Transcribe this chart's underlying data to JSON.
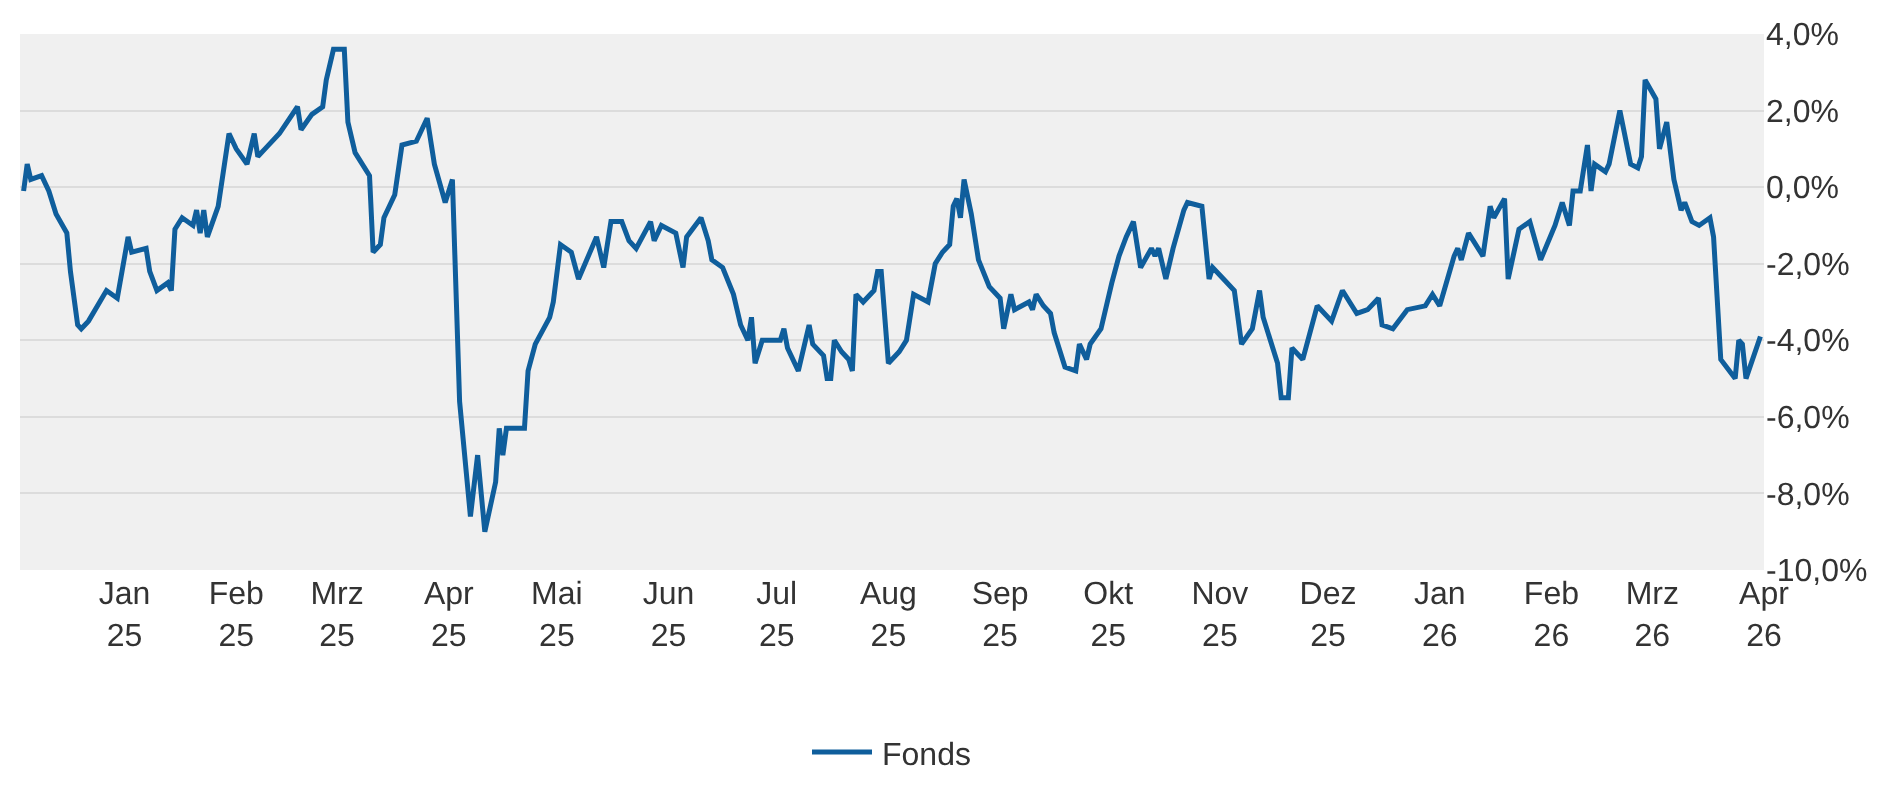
{
  "chart_data": {
    "type": "line",
    "x": [
      "2024-12-04",
      "2024-12-05",
      "2024-12-06",
      "2024-12-09",
      "2024-12-11",
      "2024-12-13",
      "2024-12-16",
      "2024-12-17",
      "2024-12-19",
      "2024-12-20",
      "2024-12-22",
      "2024-12-27",
      "2024-12-30",
      "2025-01-02",
      "2025-01-03",
      "2025-01-07",
      "2025-01-08",
      "2025-01-10",
      "2025-01-13",
      "2025-01-14",
      "2025-01-15",
      "2025-01-17",
      "2025-01-20",
      "2025-01-21",
      "2025-01-22",
      "2025-01-23",
      "2025-01-24",
      "2025-01-27",
      "2025-01-30",
      "2025-02-01",
      "2025-02-04",
      "2025-02-06",
      "2025-02-07",
      "2025-02-09",
      "2025-02-13",
      "2025-02-18",
      "2025-02-19",
      "2025-02-22",
      "2025-02-25",
      "2025-02-26",
      "2025-02-28",
      "2025-03-03",
      "2025-03-04",
      "2025-03-06",
      "2025-03-10",
      "2025-03-11",
      "2025-03-13",
      "2025-03-14",
      "2025-03-17",
      "2025-03-19",
      "2025-03-23",
      "2025-03-26",
      "2025-03-28",
      "2025-03-31",
      "2025-04-02",
      "2025-04-04",
      "2025-04-07",
      "2025-04-09",
      "2025-04-11",
      "2025-04-14",
      "2025-04-15",
      "2025-04-16",
      "2025-04-17",
      "2025-04-22",
      "2025-04-23",
      "2025-04-25",
      "2025-04-29",
      "2025-04-30",
      "2025-05-02",
      "2025-05-05",
      "2025-05-07",
      "2025-05-12",
      "2025-05-14",
      "2025-05-16",
      "2025-05-19",
      "2025-05-21",
      "2025-05-23",
      "2025-05-27",
      "2025-05-28",
      "2025-05-30",
      "2025-06-03",
      "2025-06-05",
      "2025-06-06",
      "2025-06-10",
      "2025-06-12",
      "2025-06-13",
      "2025-06-16",
      "2025-06-19",
      "2025-06-21",
      "2025-06-23",
      "2025-06-24",
      "2025-06-25",
      "2025-06-27",
      "2025-07-02",
      "2025-07-03",
      "2025-07-04",
      "2025-07-07",
      "2025-07-10",
      "2025-07-11",
      "2025-07-14",
      "2025-07-15",
      "2025-07-16",
      "2025-07-17",
      "2025-07-19",
      "2025-07-21",
      "2025-07-22",
      "2025-07-23",
      "2025-07-25",
      "2025-07-28",
      "2025-07-29",
      "2025-07-30",
      "2025-08-01",
      "2025-08-04",
      "2025-08-06",
      "2025-08-08",
      "2025-08-12",
      "2025-08-14",
      "2025-08-16",
      "2025-08-18",
      "2025-08-19",
      "2025-08-20",
      "2025-08-21",
      "2025-08-22",
      "2025-08-24",
      "2025-08-26",
      "2025-08-29",
      "2025-09-01",
      "2025-09-02",
      "2025-09-04",
      "2025-09-05",
      "2025-09-09",
      "2025-09-10",
      "2025-09-11",
      "2025-09-13",
      "2025-09-15",
      "2025-09-16",
      "2025-09-19",
      "2025-09-22",
      "2025-09-23",
      "2025-09-25",
      "2025-09-26",
      "2025-09-29",
      "2025-10-02",
      "2025-10-04",
      "2025-10-06",
      "2025-10-08",
      "2025-10-10",
      "2025-10-13",
      "2025-10-14",
      "2025-10-15",
      "2025-10-17",
      "2025-10-19",
      "2025-10-22",
      "2025-10-23",
      "2025-10-27",
      "2025-10-29",
      "2025-10-30",
      "2025-11-02",
      "2025-11-05",
      "2025-11-07",
      "2025-11-10",
      "2025-11-12",
      "2025-11-13",
      "2025-11-17",
      "2025-11-18",
      "2025-11-20",
      "2025-11-21",
      "2025-11-24",
      "2025-11-28",
      "2025-12-02",
      "2025-12-05",
      "2025-12-09",
      "2025-12-12",
      "2025-12-15",
      "2025-12-16",
      "2025-12-19",
      "2025-12-23",
      "2025-12-28",
      "2025-12-30",
      "2026-01-01",
      "2026-01-05",
      "2026-01-06",
      "2026-01-07",
      "2026-01-09",
      "2026-01-13",
      "2026-01-15",
      "2026-01-16",
      "2026-01-19",
      "2026-01-20",
      "2026-01-23",
      "2026-01-26",
      "2026-01-29",
      "2026-02-02",
      "2026-02-04",
      "2026-02-06",
      "2026-02-07",
      "2026-02-09",
      "2026-02-11",
      "2026-02-12",
      "2026-02-13",
      "2026-02-16",
      "2026-02-17",
      "2026-02-20",
      "2026-02-23",
      "2026-02-25",
      "2026-02-26",
      "2026-02-27",
      "2026-03-02",
      "2026-03-03",
      "2026-03-05",
      "2026-03-07",
      "2026-03-09",
      "2026-03-10",
      "2026-03-12",
      "2026-03-14",
      "2026-03-17",
      "2026-03-18",
      "2026-03-20",
      "2026-03-24",
      "2026-03-25",
      "2026-03-26",
      "2026-03-27",
      "2026-03-31"
    ],
    "series": [
      {
        "name": "Fonds",
        "color": "#0f5e9c",
        "values": [
          -0.1,
          0.6,
          0.2,
          0.3,
          -0.1,
          -0.7,
          -1.2,
          -2.2,
          -3.6,
          -3.7,
          -3.5,
          -2.7,
          -2.9,
          -1.3,
          -1.7,
          -1.6,
          -2.2,
          -2.7,
          -2.5,
          -2.7,
          -1.1,
          -0.8,
          -1.0,
          -0.6,
          -1.2,
          -0.6,
          -1.3,
          -0.5,
          1.4,
          1.0,
          0.6,
          1.4,
          0.8,
          1.0,
          1.4,
          2.1,
          1.5,
          1.9,
          2.1,
          2.8,
          3.6,
          3.6,
          1.7,
          0.9,
          0.3,
          -1.7,
          -1.5,
          -0.8,
          -0.2,
          1.1,
          1.2,
          1.8,
          0.6,
          -0.4,
          0.2,
          -5.6,
          -8.6,
          -7.0,
          -9.0,
          -7.7,
          -6.3,
          -7.0,
          -6.3,
          -6.3,
          -4.8,
          -4.1,
          -3.4,
          -3.0,
          -1.5,
          -1.7,
          -2.4,
          -1.3,
          -2.1,
          -0.9,
          -0.9,
          -1.4,
          -1.6,
          -0.9,
          -1.4,
          -1.0,
          -1.2,
          -2.1,
          -1.3,
          -0.8,
          -1.4,
          -1.9,
          -2.1,
          -2.8,
          -3.6,
          -4.0,
          -3.4,
          -4.6,
          -4.0,
          -4.0,
          -3.7,
          -4.2,
          -4.8,
          -3.6,
          -4.1,
          -4.4,
          -5.0,
          -5.0,
          -4.0,
          -4.3,
          -4.5,
          -4.8,
          -2.8,
          -3.0,
          -2.7,
          -2.2,
          -2.2,
          -4.6,
          -4.3,
          -4.0,
          -2.8,
          -3.0,
          -2.0,
          -1.7,
          -1.5,
          -0.5,
          -0.3,
          -0.8,
          0.2,
          -0.7,
          -1.9,
          -2.6,
          -2.9,
          -3.7,
          -2.8,
          -3.2,
          -3.0,
          -3.2,
          -2.8,
          -3.1,
          -3.3,
          -3.8,
          -4.7,
          -4.8,
          -4.1,
          -4.5,
          -4.1,
          -3.7,
          -2.5,
          -1.8,
          -1.3,
          -0.9,
          -2.1,
          -1.6,
          -1.8,
          -1.6,
          -2.4,
          -1.6,
          -0.6,
          -0.4,
          -0.5,
          -2.4,
          -2.1,
          -2.4,
          -2.7,
          -4.1,
          -3.7,
          -2.7,
          -3.4,
          -4.6,
          -5.5,
          -5.5,
          -4.2,
          -4.5,
          -3.1,
          -3.5,
          -2.7,
          -3.3,
          -3.2,
          -2.9,
          -3.6,
          -3.7,
          -3.2,
          -3.1,
          -2.8,
          -3.1,
          -1.8,
          -1.6,
          -1.9,
          -1.2,
          -1.8,
          -0.5,
          -0.8,
          -0.3,
          -2.4,
          -1.1,
          -0.9,
          -1.9,
          -1.0,
          -0.4,
          -1.0,
          -0.1,
          -0.1,
          1.1,
          -0.1,
          0.6,
          0.4,
          0.6,
          2.0,
          0.6,
          0.5,
          0.8,
          2.8,
          2.3,
          1.0,
          1.7,
          0.2,
          -0.6,
          -0.4,
          -0.9,
          -1.0,
          -0.8,
          -1.3,
          -4.5,
          -5.0,
          -4.0,
          -4.1,
          -5.0,
          -3.9
        ]
      }
    ],
    "xlim": [
      "2024-12-03",
      "2026-04-01"
    ],
    "xticks": [
      {
        "value": "2025-01-01",
        "label": "Jan\n25"
      },
      {
        "value": "2025-02-01",
        "label": "Feb\n25"
      },
      {
        "value": "2025-03-01",
        "label": "Mrz\n25"
      },
      {
        "value": "2025-04-01",
        "label": "Apr\n25"
      },
      {
        "value": "2025-05-01",
        "label": "Mai\n25"
      },
      {
        "value": "2025-06-01",
        "label": "Jun\n25"
      },
      {
        "value": "2025-07-01",
        "label": "Jul\n25"
      },
      {
        "value": "2025-08-01",
        "label": "Aug\n25"
      },
      {
        "value": "2025-09-01",
        "label": "Sep\n25"
      },
      {
        "value": "2025-10-01",
        "label": "Okt\n25"
      },
      {
        "value": "2025-11-01",
        "label": "Nov\n25"
      },
      {
        "value": "2025-12-01",
        "label": "Dez\n25"
      },
      {
        "value": "2026-01-01",
        "label": "Jan\n26"
      },
      {
        "value": "2026-02-01",
        "label": "Feb\n26"
      },
      {
        "value": "2026-03-01",
        "label": "Mrz\n26"
      },
      {
        "value": "2026-04-01",
        "label": "Apr\n26"
      }
    ],
    "ylim": [
      -10,
      4
    ],
    "yticks": [
      {
        "value": -10,
        "label": "-10,0%"
      },
      {
        "value": -8,
        "label": "-8,0%"
      },
      {
        "value": -6,
        "label": "-6,0%"
      },
      {
        "value": -4,
        "label": "-4,0%"
      },
      {
        "value": -2,
        "label": "-2,0%"
      },
      {
        "value": 0,
        "label": "0,0%"
      },
      {
        "value": 2,
        "label": "2,0%"
      },
      {
        "value": 4,
        "label": "4,0%"
      }
    ],
    "grid": "y",
    "legend": "bottom",
    "marker": "none",
    "line_style": "solid"
  }
}
